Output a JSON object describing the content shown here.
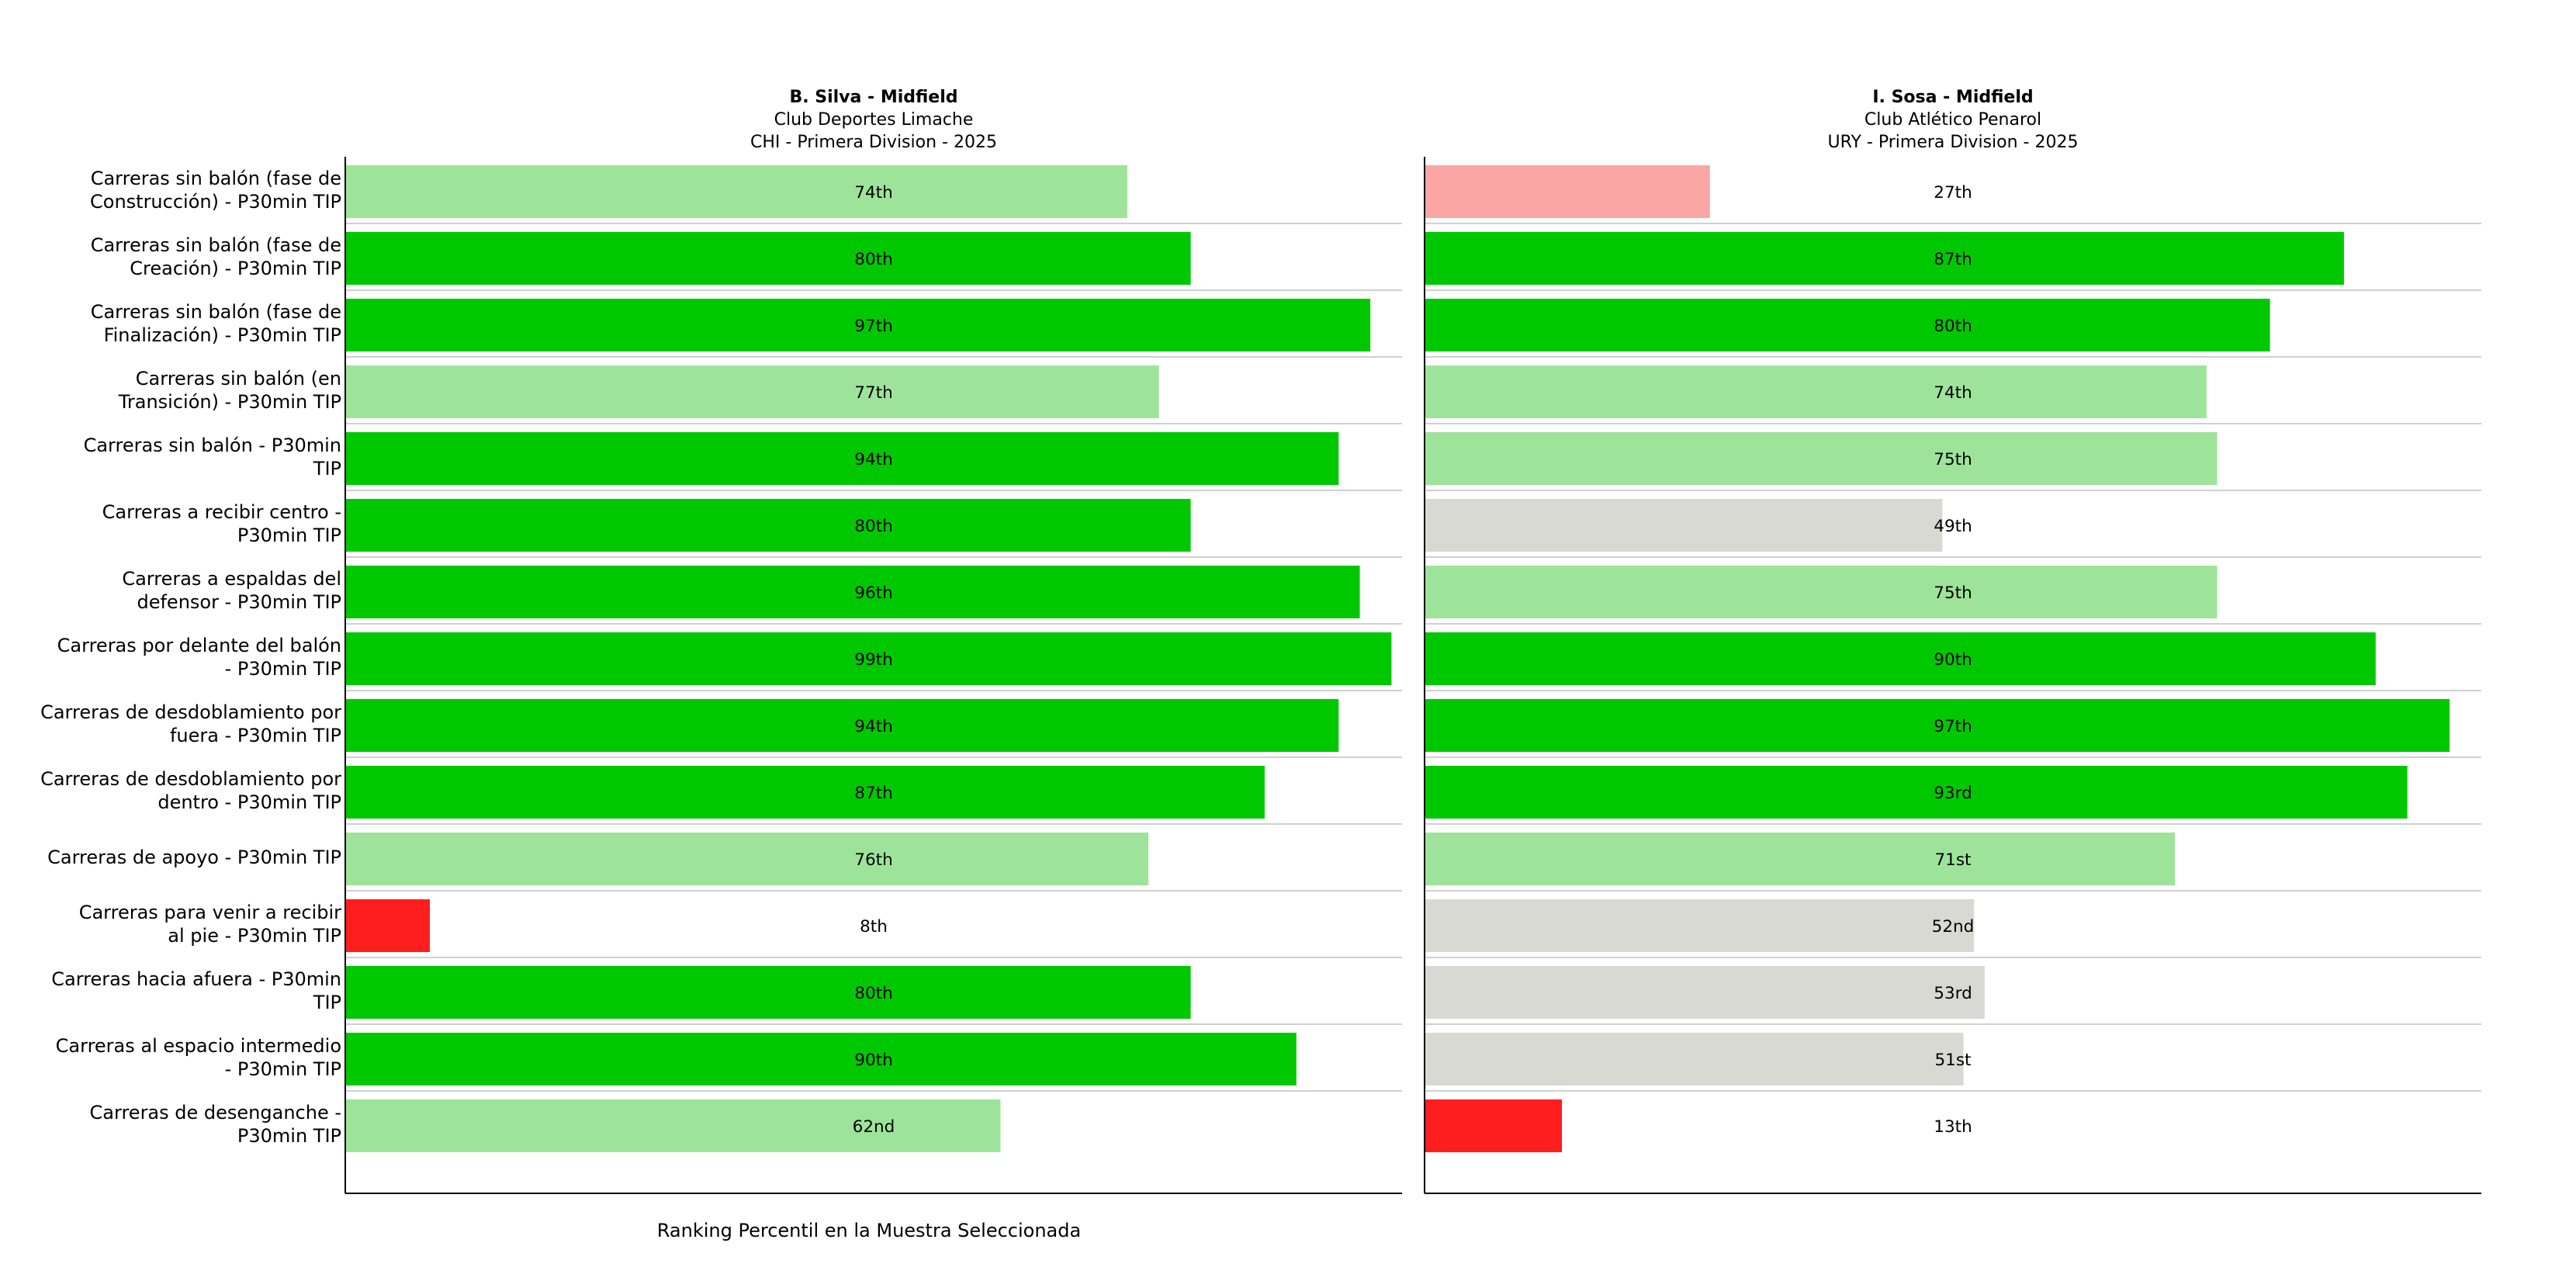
{
  "colors": {
    "elite": "#00c800",
    "above": "#9de49a",
    "average": "#d9d9d4",
    "below": "#fca5a5",
    "poor": "#ff1e1e",
    "separator": "#d0d0d0",
    "axis": "#000000"
  },
  "chart_data": {
    "type": "bar",
    "orientation": "horizontal",
    "xlabel": "Ranking Percentil en la Muestra Seleccionada",
    "xlim": [
      0,
      100
    ],
    "grid": false,
    "categories": [
      [
        "Carreras sin balón (fase de",
        "Construcción) - P30min TIP"
      ],
      [
        "Carreras sin balón (fase de",
        "Creación) - P30min TIP"
      ],
      [
        "Carreras sin balón (fase de",
        "Finalización) - P30min TIP"
      ],
      [
        "Carreras sin balón (en",
        "Transición) - P30min TIP"
      ],
      [
        "Carreras sin balón - P30min",
        "TIP"
      ],
      [
        "Carreras a recibir centro -",
        "P30min TIP"
      ],
      [
        "Carreras a espaldas del",
        "defensor - P30min TIP"
      ],
      [
        "Carreras por delante del balón",
        "- P30min TIP"
      ],
      [
        "Carreras de desdoblamiento por",
        "fuera - P30min TIP"
      ],
      [
        "Carreras de desdoblamiento por",
        "dentro - P30min TIP"
      ],
      [
        "Carreras de apoyo - P30min TIP"
      ],
      [
        "Carreras para venir a recibir",
        "al pie - P30min TIP"
      ],
      [
        "Carreras hacia afuera - P30min",
        "TIP"
      ],
      [
        "Carreras al espacio intermedio",
        "- P30min TIP"
      ],
      [
        "Carreras de desenganche -",
        "P30min TIP"
      ]
    ],
    "panels": [
      {
        "player": "B. Silva - Midfield",
        "club": "Club Deportes Limache",
        "competition": "CHI - Primera Division - 2025",
        "values": [
          74,
          80,
          97,
          77,
          94,
          80,
          96,
          99,
          94,
          87,
          76,
          8,
          80,
          90,
          62
        ],
        "labels": [
          "74th",
          "80th",
          "97th",
          "77th",
          "94th",
          "80th",
          "96th",
          "99th",
          "94th",
          "87th",
          "76th",
          "8th",
          "80th",
          "90th",
          "62nd"
        ],
        "colors": [
          "above",
          "elite",
          "elite",
          "above",
          "elite",
          "elite",
          "elite",
          "elite",
          "elite",
          "elite",
          "above",
          "poor",
          "elite",
          "elite",
          "above"
        ]
      },
      {
        "player": "I. Sosa - Midfield",
        "club": "Club Atlético Penarol",
        "competition": "URY - Primera Division - 2025",
        "values": [
          27,
          87,
          80,
          74,
          75,
          49,
          75,
          90,
          97,
          93,
          71,
          52,
          53,
          51,
          13
        ],
        "labels": [
          "27th",
          "87th",
          "80th",
          "74th",
          "75th",
          "49th",
          "75th",
          "90th",
          "97th",
          "93rd",
          "71st",
          "52nd",
          "53rd",
          "51st",
          "13th"
        ],
        "colors": [
          "below",
          "elite",
          "elite",
          "above",
          "above",
          "average",
          "above",
          "elite",
          "elite",
          "elite",
          "above",
          "average",
          "average",
          "average",
          "poor"
        ]
      }
    ]
  }
}
